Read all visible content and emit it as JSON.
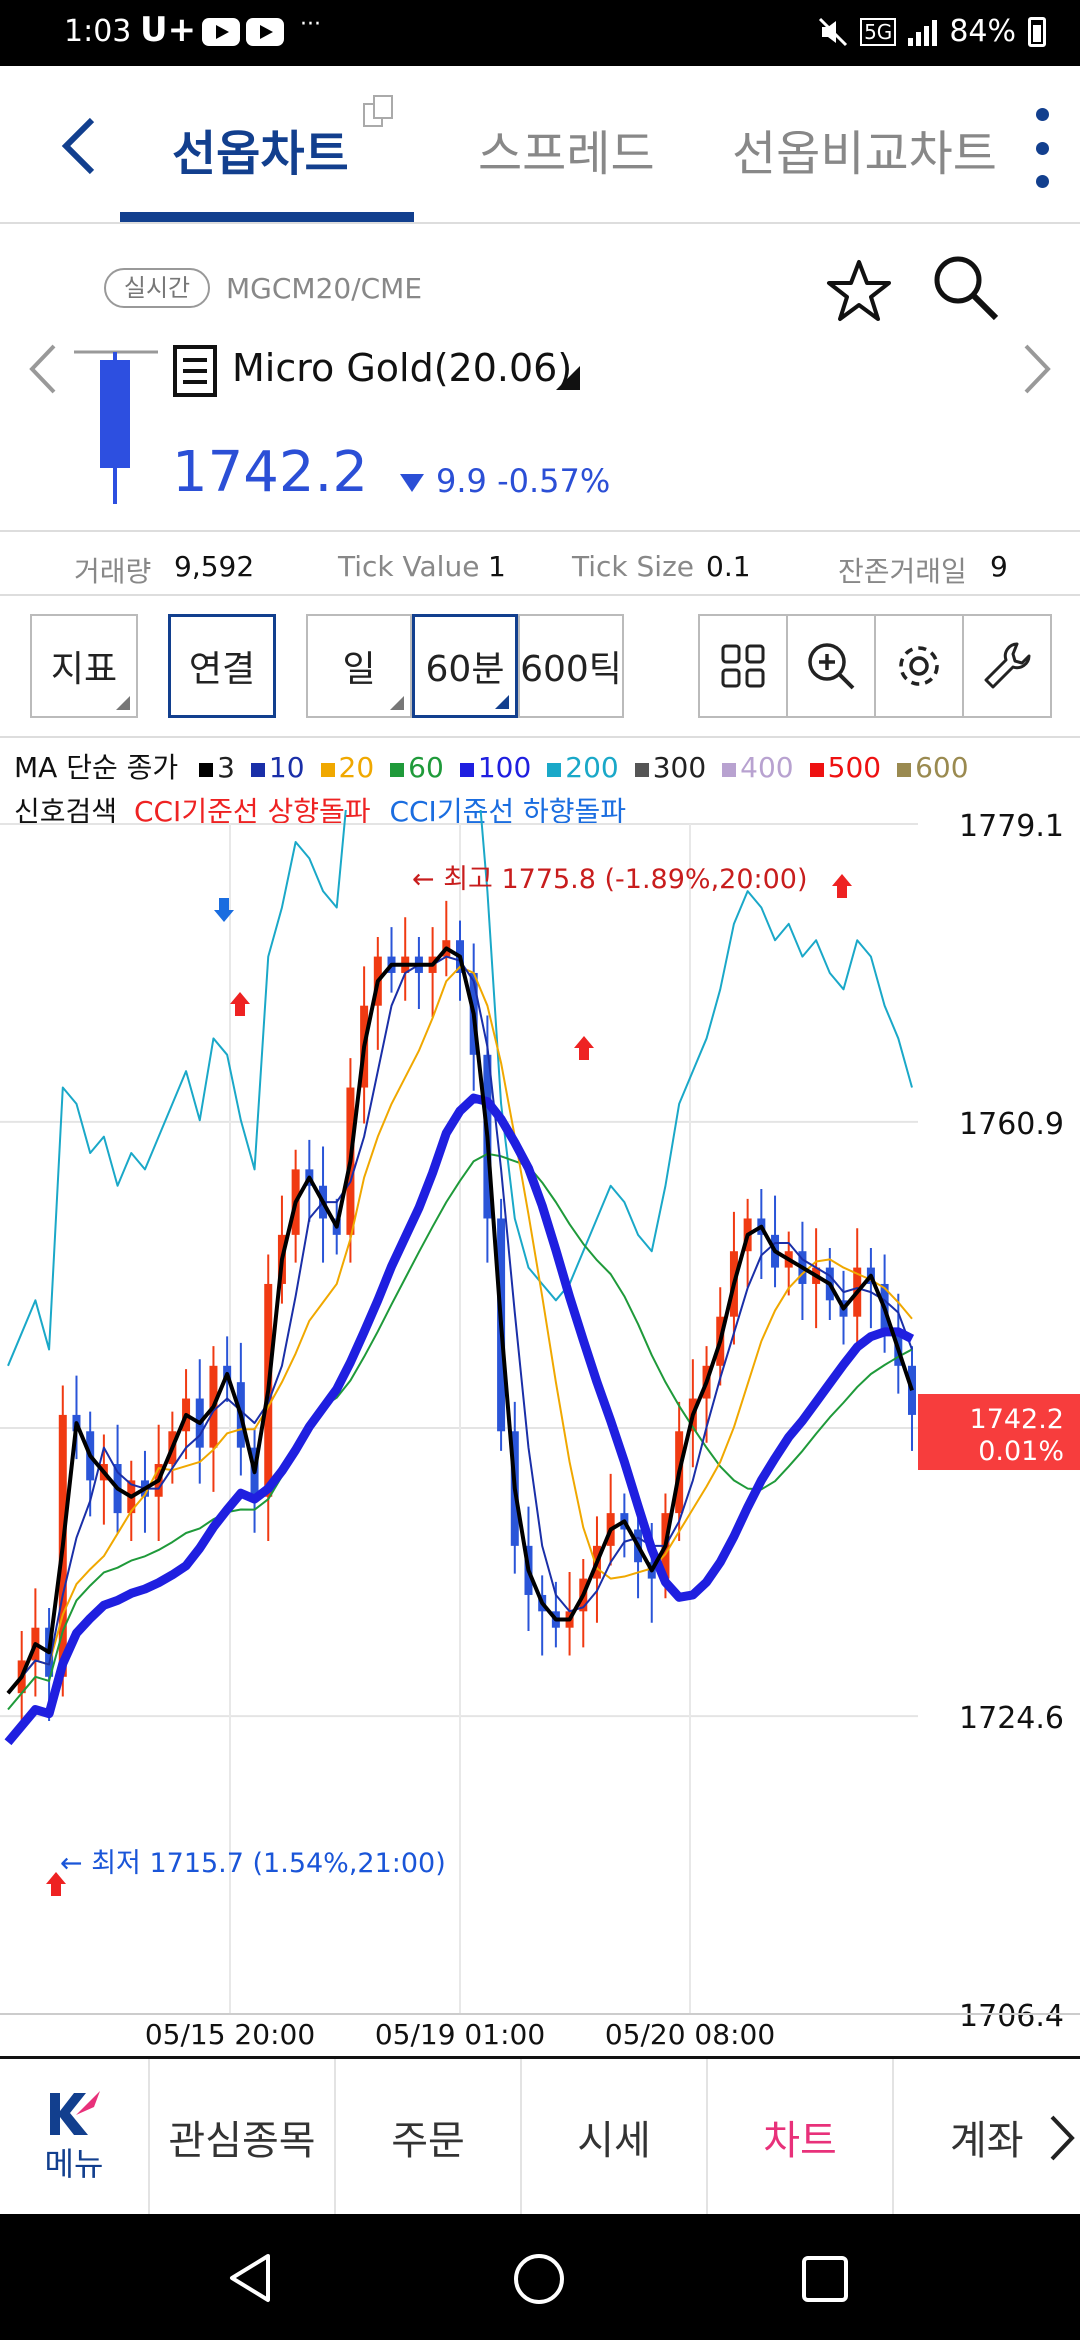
{
  "status_bar": {
    "time": "1:03",
    "carrier": "U+",
    "dots": "···",
    "network": "5G",
    "battery": "84%"
  },
  "tabs": [
    {
      "label": "선옵차트"
    },
    {
      "label": "스프레드"
    },
    {
      "label": "선옵비교차트"
    }
  ],
  "symbol": {
    "badge": "실시간",
    "code": "MGCM20/CME",
    "name": "Micro Gold(20.06)",
    "price": "1742.2",
    "change": "9.9",
    "change_pct": "-0.57%",
    "price_color": "#2b4fd6"
  },
  "info": {
    "volume_label": "거래량",
    "volume": "9,592",
    "tick_value_label": "Tick Value",
    "tick_value": "1",
    "tick_size_label": "Tick Size",
    "tick_size": "0.1",
    "days_left_label": "잔존거래일",
    "days_left": "9"
  },
  "toolbar": {
    "indicator": "지표",
    "link": "연결",
    "period_day": "일",
    "period_60": "60분",
    "period_tick": "600틱"
  },
  "ma_legend": {
    "label": "MA 단순 종가",
    "items": [
      {
        "label": "3",
        "color": "#000000"
      },
      {
        "label": "10",
        "color": "#1a2fa8"
      },
      {
        "label": "20",
        "color": "#f0a800"
      },
      {
        "label": "60",
        "color": "#1f9a3a"
      },
      {
        "label": "100",
        "color": "#1f1fe0"
      },
      {
        "label": "200",
        "color": "#1aa8c8"
      },
      {
        "label": "300",
        "color": "#555555"
      },
      {
        "label": "400",
        "color": "#b8a2d0"
      },
      {
        "label": "500",
        "color": "#ee1111"
      },
      {
        "label": "600",
        "color": "#9a8a50"
      }
    ]
  },
  "signal_legend": {
    "label": "신호검색",
    "up": "CCI기준선 상향돌파",
    "down": "CCI기준선 하향돌파",
    "up_color": "#ee2222",
    "down_color": "#1a6de0"
  },
  "chart_data": {
    "type": "candlestick",
    "y_axis_labels": [
      "1779.1",
      "1760.9",
      "1742.2",
      "1724.6",
      "1706.4"
    ],
    "ylim": [
      1706.4,
      1779.1
    ],
    "x_axis_labels": [
      "05/15 20:00",
      "05/19 01:00",
      "05/20 08:00"
    ],
    "high_annotation": "← 최고 1775.8 (-1.89%,20:00)",
    "low_annotation": "← 최저 1715.7 (1.54%,21:00)",
    "current_price_tag": "1742.2",
    "current_change_tag": "0.01%",
    "close_path": [
      1726,
      1728,
      1730,
      1727,
      1743,
      1742,
      1739,
      1740,
      1737,
      1739,
      1738,
      1740,
      1742,
      1744,
      1741,
      1746,
      1745,
      1741,
      1738,
      1751,
      1754,
      1758,
      1757,
      1755,
      1754,
      1763,
      1768,
      1771,
      1770,
      1771,
      1770,
      1771,
      1772,
      1770,
      1765,
      1755,
      1742,
      1735,
      1732,
      1731,
      1730,
      1731,
      1733,
      1735,
      1737,
      1736,
      1734,
      1733,
      1737,
      1742,
      1744,
      1746,
      1749,
      1753,
      1755,
      1754,
      1752,
      1753,
      1751,
      1752,
      1750,
      1749,
      1752,
      1751,
      1748,
      1746,
      1743
    ]
  },
  "bottom_nav": [
    {
      "label": "메뉴"
    },
    {
      "label": "관심종목"
    },
    {
      "label": "주문"
    },
    {
      "label": "시세"
    },
    {
      "label": "차트"
    },
    {
      "label": "계좌"
    }
  ]
}
